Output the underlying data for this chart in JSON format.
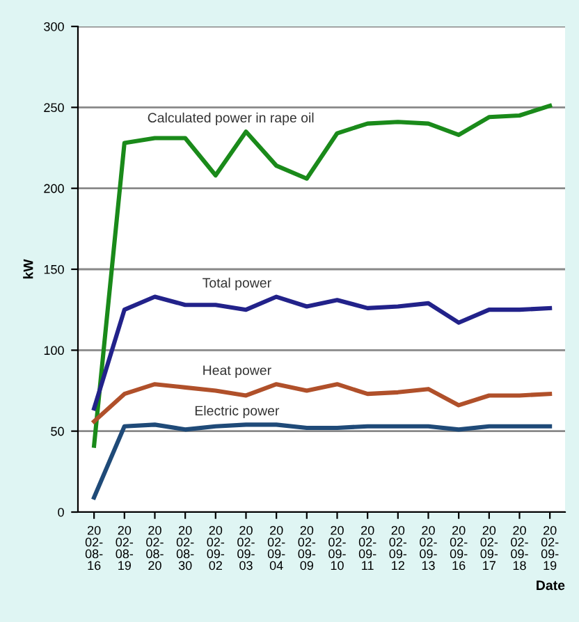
{
  "chart_data": {
    "type": "line",
    "xlabel": "Date",
    "ylabel": "kW",
    "categories": [
      "2002-08-16",
      "2002-08-19",
      "2002-08-20",
      "2002-08-30",
      "2002-09-02",
      "2002-09-03",
      "2002-09-04",
      "2002-09-09",
      "2002-09-10",
      "2002-09-11",
      "2002-09-12",
      "2002-09-13",
      "2002-09-16",
      "2002-09-17",
      "2002-09-18",
      "2002-09-19"
    ],
    "series": [
      {
        "name": "Calculated power in rape oil",
        "color": "#1a8a1a",
        "values": [
          41,
          228,
          231,
          231,
          208,
          235,
          214,
          206,
          234,
          240,
          241,
          240,
          233,
          244,
          245,
          251
        ]
      },
      {
        "name": "Total power",
        "color": "#22228a",
        "values": [
          64,
          125,
          133,
          128,
          128,
          125,
          133,
          127,
          131,
          126,
          127,
          129,
          117,
          125,
          125,
          126
        ]
      },
      {
        "name": "Heat power",
        "color": "#b0502a",
        "values": [
          56,
          73,
          79,
          77,
          75,
          72,
          79,
          75,
          79,
          73,
          74,
          76,
          66,
          72,
          72,
          73
        ]
      },
      {
        "name": "Electric power",
        "color": "#1f4a78",
        "values": [
          9,
          53,
          54,
          51,
          53,
          54,
          54,
          52,
          52,
          53,
          53,
          53,
          51,
          53,
          53,
          53
        ]
      }
    ],
    "ylim": [
      0,
      300
    ],
    "yticks": [
      0,
      50,
      100,
      150,
      200,
      250,
      300
    ],
    "grid": "y",
    "legend": false,
    "marker": "none",
    "line_style": "solid"
  }
}
